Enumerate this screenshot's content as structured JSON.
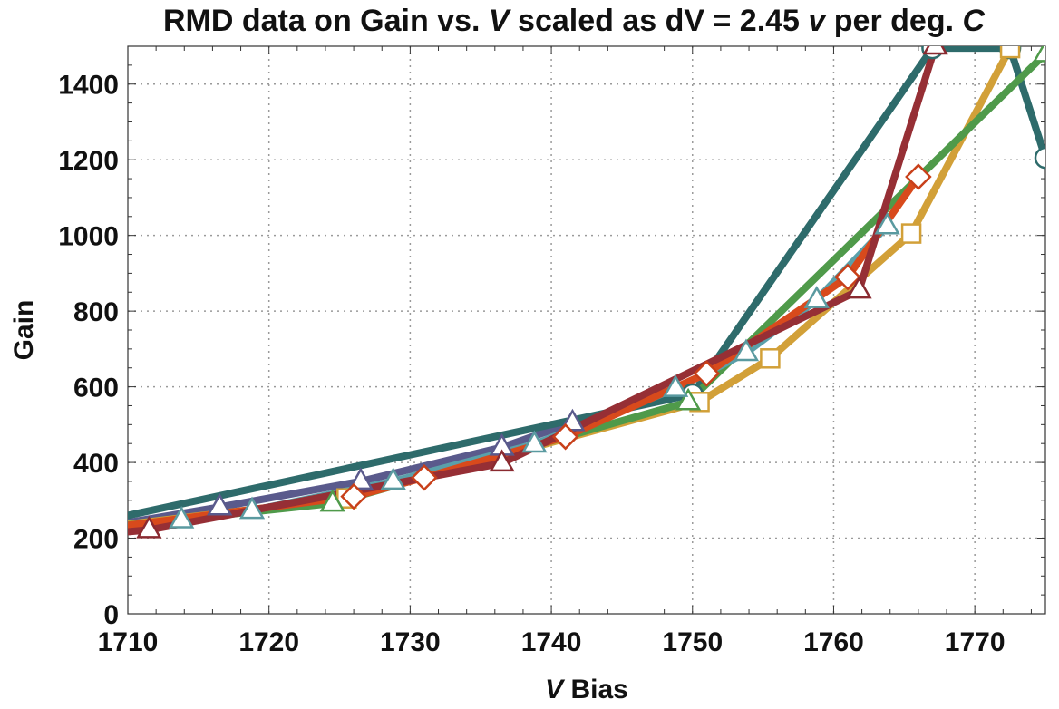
{
  "chart_data": {
    "type": "line",
    "title": {
      "before_italic": "RMD data on Gain vs. ",
      "italic_symbol": "V",
      "middle": " scaled as dV = 2.45 ",
      "italic_unit": "v",
      "after_unit": " per deg. ",
      "italic_c": "C"
    },
    "xlabel": {
      "italic_symbol": "V",
      "text": " Bias"
    },
    "ylabel": "Gain",
    "xlim": [
      1710,
      1775
    ],
    "ylim": [
      0,
      1500
    ],
    "xticks": [
      1710,
      1720,
      1730,
      1740,
      1750,
      1760,
      1770
    ],
    "yticks": [
      0,
      200,
      400,
      600,
      800,
      1000,
      1200,
      1400
    ],
    "grid": true,
    "series": [
      {
        "color": "#5a5a8c",
        "marker": "triangle",
        "marker_stroke": "#5a5a8c",
        "x": [
          1705,
          1716.5,
          1726.5,
          1736.5,
          1741.5
        ],
        "y": [
          210,
          282,
          350,
          440,
          505
        ]
      },
      {
        "color": "#2e6b6b",
        "marker": "circle",
        "marker_stroke": "#2e6b6b",
        "x": [
          1705,
          1750,
          1767,
          1772.5,
          1775
        ],
        "y": [
          220,
          580,
          1495,
          1495,
          1205
        ]
      },
      {
        "color": "#d2a038",
        "marker": "square",
        "marker_stroke": "#d2a038",
        "x": [
          1705,
          1725.5,
          1750.5,
          1755.5,
          1765.5,
          1772.5
        ],
        "y": [
          215,
          305,
          560,
          675,
          1005,
          1495
        ]
      },
      {
        "color": "#4f9a4a",
        "marker": "triangle",
        "marker_stroke": "#4f9a4a",
        "x": [
          1705,
          1724.5,
          1749.7,
          1775
        ],
        "y": [
          215,
          292,
          560,
          1480
        ]
      },
      {
        "color": "#5aa0aa",
        "marker": "triangle",
        "marker_stroke": "#5a9aa0",
        "x": [
          1705,
          1713.8,
          1718.8,
          1728.8,
          1738.8,
          1748.8,
          1753.8,
          1758.8,
          1763.8
        ],
        "y": [
          215,
          248,
          273,
          350,
          448,
          595,
          690,
          830,
          1025
        ]
      },
      {
        "color": "#d84a1c",
        "marker": "diamond",
        "marker_stroke": "#c8401a",
        "x": [
          1705,
          1726,
          1731,
          1741,
          1751,
          1761,
          1766
        ],
        "y": [
          210,
          310,
          360,
          468,
          635,
          890,
          1155
        ]
      },
      {
        "color": "#962f35",
        "marker": "triangle",
        "marker_stroke": "#8a2a30",
        "x": [
          1705,
          1711.5,
          1736.5,
          1761.8,
          1767.2
        ],
        "y": [
          200,
          222,
          398,
          855,
          1500
        ]
      }
    ]
  }
}
